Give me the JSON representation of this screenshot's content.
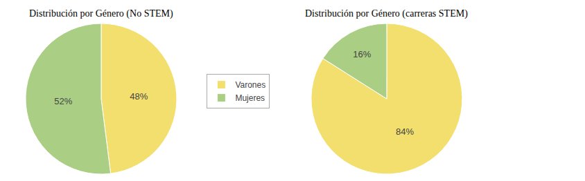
{
  "chart_data": [
    {
      "type": "pie",
      "title": "Distribución por Género (No STEM)",
      "categories": [
        "Varones",
        "Mujeres"
      ],
      "values": [
        48,
        52
      ],
      "value_labels": [
        "48%",
        "52%"
      ],
      "colors": [
        "#F2DF6E",
        "#AACF84"
      ],
      "data_labels": true,
      "legend": "right"
    },
    {
      "type": "pie",
      "title": "Distribución por Género (carreras STEM)",
      "categories": [
        "Varones",
        "Mujeres"
      ],
      "values": [
        84,
        16
      ],
      "value_labels": [
        "84%",
        "16%"
      ],
      "colors": [
        "#F2DF6E",
        "#AACF84"
      ],
      "data_labels": true,
      "legend": "right"
    }
  ]
}
